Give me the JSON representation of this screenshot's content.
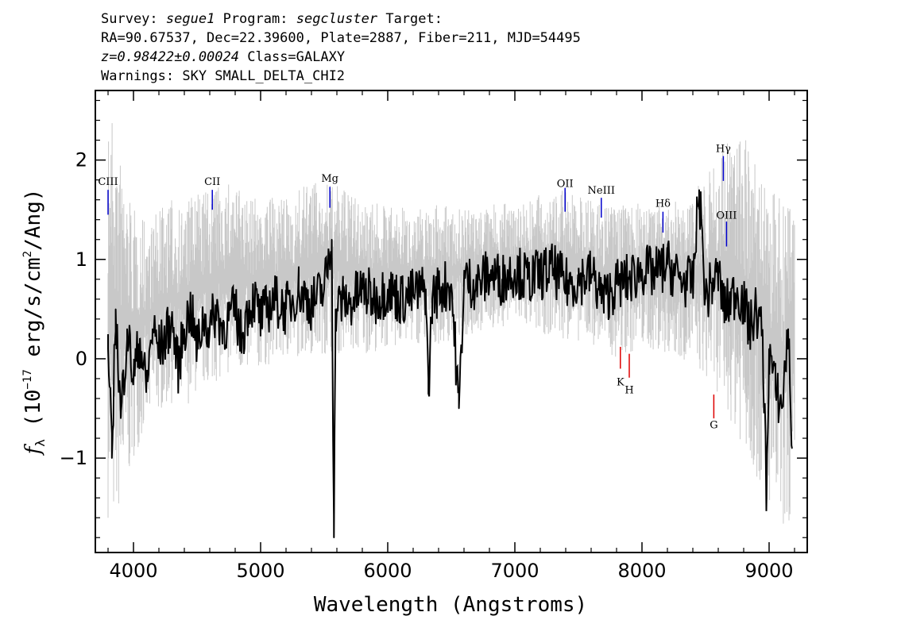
{
  "header": {
    "survey_label": "Survey:",
    "survey": "segue1",
    "program_label": "Program:",
    "program": "segcluster",
    "target_label": "Target:",
    "line2": "RA=90.67537, Dec=22.39600, Plate=2887, Fiber=211, MJD=54495",
    "redshift": "z=0.98422±0.00024",
    "class": "Class=GALAXY",
    "warnings": "Warnings: SKY SMALL_DELTA_CHI2"
  },
  "chart_data": {
    "type": "line",
    "xlabel": "Wavelength (Angstroms)",
    "ylabel_parts": {
      "f": "f",
      "sub": "λ",
      "pre": "(10",
      "exp": "−17",
      "mid": " erg/s/cm",
      "exp2": "2",
      "post": "/Ang)"
    },
    "xlim": [
      3700,
      9300
    ],
    "ylim": [
      -1.95,
      2.7
    ],
    "xticks": [
      4000,
      5000,
      6000,
      7000,
      8000,
      9000
    ],
    "yticks": [
      -1,
      0,
      1,
      2
    ],
    "ytick_labels": [
      "−1",
      "0",
      "1",
      "2"
    ],
    "series": [
      {
        "role": "error",
        "color": "#c8c8c8",
        "x": [
          3800,
          3850,
          3900,
          3950,
          4000,
          4100,
          4200,
          4300,
          4400,
          4500,
          4600,
          4700,
          4800,
          4900,
          5000,
          5200,
          5400,
          5600,
          5800,
          6000,
          6200,
          6400,
          6600,
          6800,
          7000,
          7200,
          7400,
          7600,
          7800,
          8000,
          8200,
          8400,
          8600,
          8800,
          9000,
          9100,
          9200
        ],
        "lower": [
          -1.6,
          -1.7,
          -1.5,
          -1.3,
          -1.0,
          -0.7,
          -0.55,
          -0.45,
          -0.5,
          -0.35,
          -0.25,
          -0.2,
          -0.15,
          -0.15,
          -0.1,
          0.0,
          0.05,
          0.05,
          0.05,
          0.1,
          0.15,
          0.15,
          0.2,
          0.3,
          0.35,
          0.25,
          0.2,
          0.15,
          0.0,
          0.1,
          0.05,
          -0.05,
          -0.35,
          -0.9,
          -1.5,
          -1.7,
          -1.7
        ],
        "upper": [
          2.6,
          2.4,
          2.0,
          1.8,
          1.5,
          1.4,
          1.5,
          1.6,
          1.55,
          1.7,
          1.7,
          1.75,
          1.8,
          1.6,
          1.65,
          1.6,
          1.8,
          1.75,
          1.6,
          1.55,
          1.5,
          1.55,
          1.5,
          1.55,
          1.6,
          1.65,
          1.7,
          1.6,
          1.55,
          1.6,
          1.55,
          1.7,
          2.1,
          2.3,
          1.7,
          1.6,
          1.5
        ]
      },
      {
        "role": "flux",
        "color": "#000000",
        "x": [
          3800,
          3830,
          3860,
          3900,
          3950,
          4000,
          4050,
          4100,
          4150,
          4200,
          4250,
          4300,
          4350,
          4400,
          4450,
          4500,
          4550,
          4600,
          4650,
          4700,
          4750,
          4800,
          4850,
          4900,
          4950,
          5000,
          5100,
          5200,
          5300,
          5400,
          5500,
          5560,
          5577,
          5590,
          5650,
          5700,
          5800,
          5900,
          6000,
          6100,
          6200,
          6300,
          6320,
          6350,
          6400,
          6500,
          6560,
          6600,
          6700,
          6800,
          6900,
          7000,
          7100,
          7200,
          7300,
          7400,
          7500,
          7600,
          7700,
          7800,
          7900,
          8000,
          8100,
          8200,
          8300,
          8400,
          8450,
          8500,
          8550,
          8600,
          8650,
          8700,
          8750,
          8800,
          8850,
          8900,
          8950,
          8980,
          9000,
          9050,
          9100,
          9150,
          9180
        ],
        "y": [
          0.1,
          -1.0,
          0.5,
          -0.6,
          0.3,
          -0.2,
          0.2,
          -0.3,
          0.3,
          0.1,
          0.2,
          0.4,
          -0.1,
          0.3,
          0.5,
          0.1,
          0.4,
          0.3,
          0.5,
          0.3,
          0.4,
          0.5,
          0.2,
          0.5,
          0.6,
          0.4,
          0.6,
          0.5,
          0.7,
          0.55,
          0.7,
          1.2,
          -1.8,
          0.5,
          0.6,
          0.55,
          0.7,
          0.6,
          0.7,
          0.6,
          0.65,
          0.7,
          -0.35,
          0.6,
          0.7,
          0.75,
          -0.5,
          0.8,
          0.75,
          0.85,
          0.8,
          0.9,
          0.8,
          0.85,
          0.9,
          0.75,
          0.8,
          0.85,
          0.6,
          0.75,
          0.8,
          0.9,
          0.85,
          0.95,
          0.8,
          0.75,
          1.7,
          0.6,
          0.75,
          0.85,
          0.5,
          0.6,
          0.7,
          0.55,
          0.3,
          0.5,
          0.2,
          -1.4,
          0.1,
          -0.3,
          -0.5,
          0.3,
          -0.9
        ]
      }
    ],
    "emission_lines": [
      {
        "label": "CIII",
        "x": 3800,
        "y_label": 1.75,
        "y0": 1.45,
        "y1": 1.7
      },
      {
        "label": "CII",
        "x": 4620,
        "y_label": 1.75,
        "y0": 1.5,
        "y1": 1.7
      },
      {
        "label": "Mg",
        "x": 5545,
        "y_label": 1.78,
        "y0": 1.52,
        "y1": 1.73
      },
      {
        "label": "OII",
        "x": 7395,
        "y_label": 1.73,
        "y0": 1.48,
        "y1": 1.72
      },
      {
        "label": "NeIII",
        "x": 7680,
        "y_label": 1.66,
        "y0": 1.42,
        "y1": 1.62
      },
      {
        "label": "Hδ",
        "x": 8165,
        "y_label": 1.53,
        "y0": 1.27,
        "y1": 1.48
      },
      {
        "label": "Hγ",
        "x": 8640,
        "y_label": 2.08,
        "y0": 1.79,
        "y1": 2.04
      },
      {
        "label": "OIII",
        "x": 8665,
        "y_label": 1.41,
        "y0": 1.13,
        "y1": 1.38
      }
    ],
    "absorption_lines": [
      {
        "label": "K",
        "x": 7830,
        "y_label": -0.27,
        "y0": -0.1,
        "y1": 0.12
      },
      {
        "label": "H",
        "x": 7900,
        "y_label": -0.35,
        "y0": -0.19,
        "y1": 0.05
      },
      {
        "label": "G",
        "x": 8565,
        "y_label": -0.7,
        "y0": -0.6,
        "y1": -0.36
      }
    ],
    "emission_color": "#0000cc",
    "absorption_color": "#dd0000"
  }
}
